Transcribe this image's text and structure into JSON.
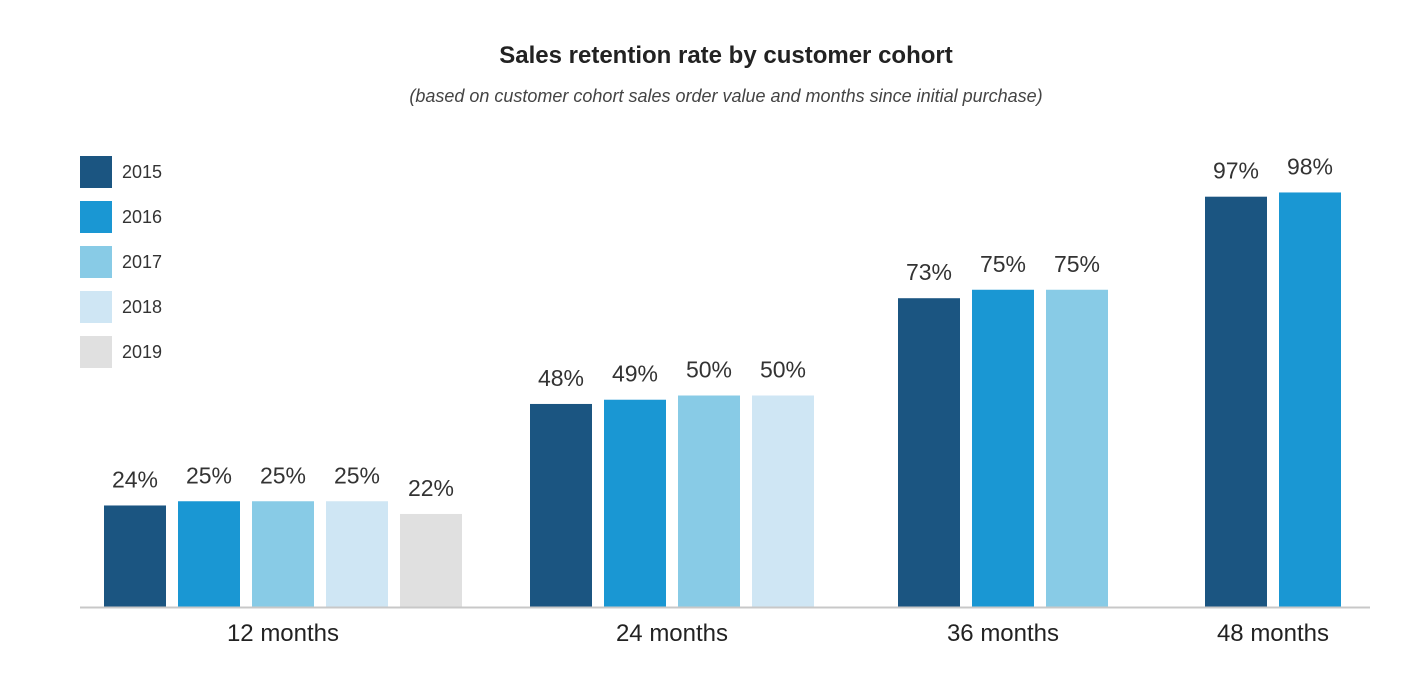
{
  "chart_data": {
    "type": "bar",
    "title": "Sales retention rate by customer cohort",
    "subtitle": "(based on customer cohort sales order value and months since initial purchase)",
    "xlabel": "",
    "ylabel": "",
    "ylim": [
      0,
      100
    ],
    "grid": false,
    "legend_position": "top-left",
    "value_suffix": "%",
    "categories": [
      "12 months",
      "24 months",
      "36 months",
      "48 months"
    ],
    "series": [
      {
        "name": "2015",
        "color": "#1b5581",
        "values": [
          24,
          48,
          73,
          97
        ]
      },
      {
        "name": "2016",
        "color": "#1a97d3",
        "values": [
          25,
          49,
          75,
          98
        ]
      },
      {
        "name": "2017",
        "color": "#88cbe6",
        "values": [
          25,
          50,
          75,
          null
        ]
      },
      {
        "name": "2018",
        "color": "#cfe6f4",
        "values": [
          25,
          50,
          null,
          null
        ]
      },
      {
        "name": "2019",
        "color": "#e0e0e0",
        "values": [
          22,
          null,
          null,
          null
        ]
      }
    ]
  }
}
